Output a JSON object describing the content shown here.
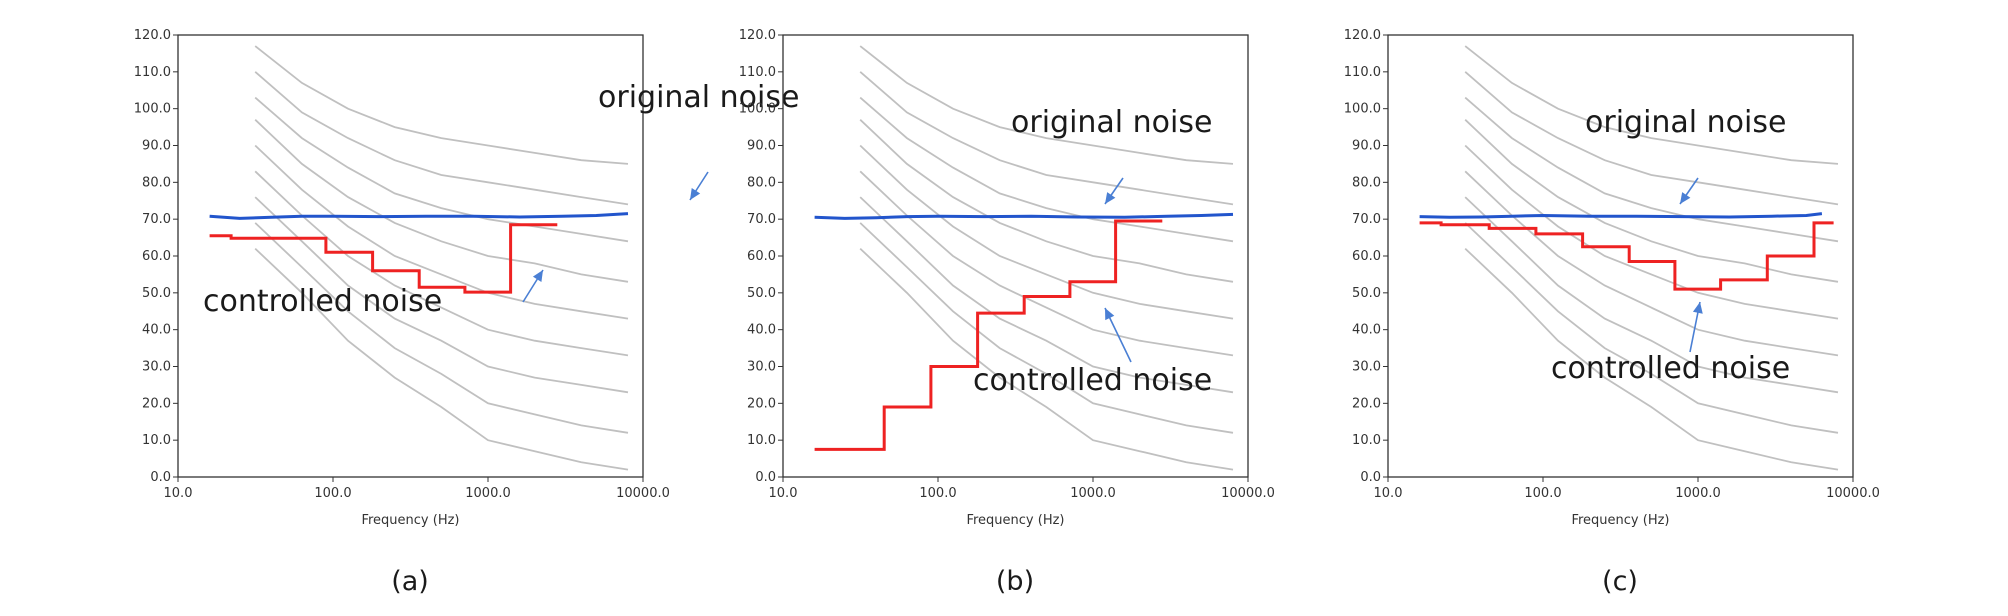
{
  "figure": {
    "panels": [
      {
        "id": "a",
        "caption": "(a)",
        "chart_data": {
          "type": "line",
          "xlabel": "Frequency (Hz)",
          "ylabel": "",
          "xscale": "log",
          "xlim": [
            10,
            10000
          ],
          "ylim": [
            0,
            120
          ],
          "xticks": [
            "10.0",
            "100.0",
            "1000.0",
            "10000.0"
          ],
          "yticks": [
            "0.0",
            "10.0",
            "20.0",
            "30.0",
            "40.0",
            "50.0",
            "60.0",
            "70.0",
            "80.0",
            "90.0",
            "100.0",
            "110.0",
            "120.0"
          ],
          "annotations": [
            {
              "text": "original noise",
              "target": "original noise"
            },
            {
              "text": "controlled noise",
              "target": "controlled noise"
            }
          ],
          "series": [
            {
              "name": "original noise",
              "color": "#2255cc",
              "points": [
                [
                  16,
                  70.8
                ],
                [
                  25,
                  70.2
                ],
                [
                  40,
                  70.5
                ],
                [
                  63,
                  70.8
                ],
                [
                  100,
                  70.8
                ],
                [
                  200,
                  70.7
                ],
                [
                  400,
                  70.8
                ],
                [
                  800,
                  70.8
                ],
                [
                  1600,
                  70.6
                ],
                [
                  3000,
                  70.8
                ],
                [
                  5000,
                  71.0
                ],
                [
                  8000,
                  71.5
                ]
              ]
            },
            {
              "name": "controlled noise",
              "color": "#ee2222",
              "step": true,
              "points": [
                [
                  16,
                  65.5
                ],
                [
                  22,
                  64.8
                ],
                [
                  90,
                  61
                ],
                [
                  180,
                  56
                ],
                [
                  360,
                  51.5
                ],
                [
                  710,
                  50.2
                ],
                [
                  1400,
                  68.5
                ],
                [
                  2800,
                  68.5
                ]
              ]
            }
          ]
        }
      },
      {
        "id": "b",
        "caption": "(b)",
        "chart_data": {
          "type": "line",
          "xlabel": "Frequency (Hz)",
          "ylabel": "",
          "xscale": "log",
          "xlim": [
            10,
            10000
          ],
          "ylim": [
            0,
            120
          ],
          "xticks": [
            "10.0",
            "100.0",
            "1000.0",
            "10000.0"
          ],
          "yticks": [
            "0.0",
            "10.0",
            "20.0",
            "30.0",
            "40.0",
            "50.0",
            "60.0",
            "70.0",
            "80.0",
            "90.0",
            "100.0",
            "110.0",
            "120.0"
          ],
          "annotations": [
            {
              "text": "original noise",
              "target": "original noise"
            },
            {
              "text": "controlled noise",
              "target": "controlled noise"
            }
          ],
          "series": [
            {
              "name": "original noise",
              "color": "#2255cc",
              "points": [
                [
                  16,
                  70.5
                ],
                [
                  25,
                  70.2
                ],
                [
                  40,
                  70.4
                ],
                [
                  63,
                  70.7
                ],
                [
                  100,
                  70.8
                ],
                [
                  200,
                  70.7
                ],
                [
                  400,
                  70.8
                ],
                [
                  800,
                  70.6
                ],
                [
                  1600,
                  70.5
                ],
                [
                  3000,
                  70.8
                ],
                [
                  5000,
                  71.0
                ],
                [
                  8000,
                  71.3
                ]
              ]
            },
            {
              "name": "controlled noise",
              "color": "#ee2222",
              "step": true,
              "points": [
                [
                  16,
                  7.5
                ],
                [
                  45,
                  19
                ],
                [
                  90,
                  30
                ],
                [
                  180,
                  44.5
                ],
                [
                  360,
                  49
                ],
                [
                  710,
                  53
                ],
                [
                  1400,
                  69.5
                ],
                [
                  2800,
                  69.5
                ]
              ]
            }
          ]
        }
      },
      {
        "id": "c",
        "caption": "(c)",
        "chart_data": {
          "type": "line",
          "xlabel": "Frequency (Hz)",
          "ylabel": "",
          "xscale": "log",
          "xlim": [
            10,
            10000
          ],
          "ylim": [
            0,
            120
          ],
          "xticks": [
            "10.0",
            "100.0",
            "1000.0",
            "10000.0"
          ],
          "yticks": [
            "0.0",
            "10.0",
            "20.0",
            "30.0",
            "40.0",
            "50.0",
            "60.0",
            "70.0",
            "80.0",
            "90.0",
            "100.0",
            "110.0",
            "120.0"
          ],
          "annotations": [
            {
              "text": "original noise",
              "target": "original noise"
            },
            {
              "text": "controlled noise",
              "target": "controlled noise"
            }
          ],
          "series": [
            {
              "name": "original noise",
              "color": "#2255cc",
              "points": [
                [
                  16,
                  70.7
                ],
                [
                  25,
                  70.5
                ],
                [
                  40,
                  70.6
                ],
                [
                  63,
                  70.8
                ],
                [
                  100,
                  71.0
                ],
                [
                  200,
                  70.8
                ],
                [
                  400,
                  70.8
                ],
                [
                  800,
                  70.7
                ],
                [
                  1600,
                  70.6
                ],
                [
                  3000,
                  70.8
                ],
                [
                  5000,
                  71.0
                ],
                [
                  6300,
                  71.5
                ]
              ]
            },
            {
              "name": "controlled noise",
              "color": "#ee2222",
              "step": true,
              "points": [
                [
                  16,
                  69
                ],
                [
                  22,
                  68.5
                ],
                [
                  45,
                  67.5
                ],
                [
                  90,
                  66
                ],
                [
                  180,
                  62.5
                ],
                [
                  360,
                  58.5
                ],
                [
                  710,
                  51
                ],
                [
                  1400,
                  53.5
                ],
                [
                  2800,
                  60
                ],
                [
                  5600,
                  69
                ],
                [
                  7500,
                  69
                ]
              ]
            }
          ]
        }
      }
    ],
    "background_curves": {
      "color": "#c0c0c0",
      "freqs": [
        31.5,
        63,
        125,
        250,
        500,
        1000,
        2000,
        4000,
        8000
      ],
      "levels": [
        [
          117,
          107,
          100,
          95,
          92,
          90,
          88,
          86,
          85
        ],
        [
          110,
          99,
          92,
          86,
          82,
          80,
          78,
          76,
          74
        ],
        [
          103,
          92,
          84,
          77,
          73,
          70,
          68,
          66,
          64
        ],
        [
          97,
          85,
          76,
          69,
          64,
          60,
          58,
          55,
          53
        ],
        [
          90,
          78,
          68,
          60,
          55,
          50,
          47,
          45,
          43
        ],
        [
          83,
          71,
          60,
          52,
          46,
          40,
          37,
          35,
          33
        ],
        [
          76,
          64,
          52,
          43,
          37,
          30,
          27,
          25,
          23
        ],
        [
          69,
          57,
          45,
          35,
          28,
          20,
          17,
          14,
          12
        ],
        [
          62,
          50,
          37,
          27,
          19,
          10,
          7,
          4,
          2
        ]
      ]
    }
  }
}
